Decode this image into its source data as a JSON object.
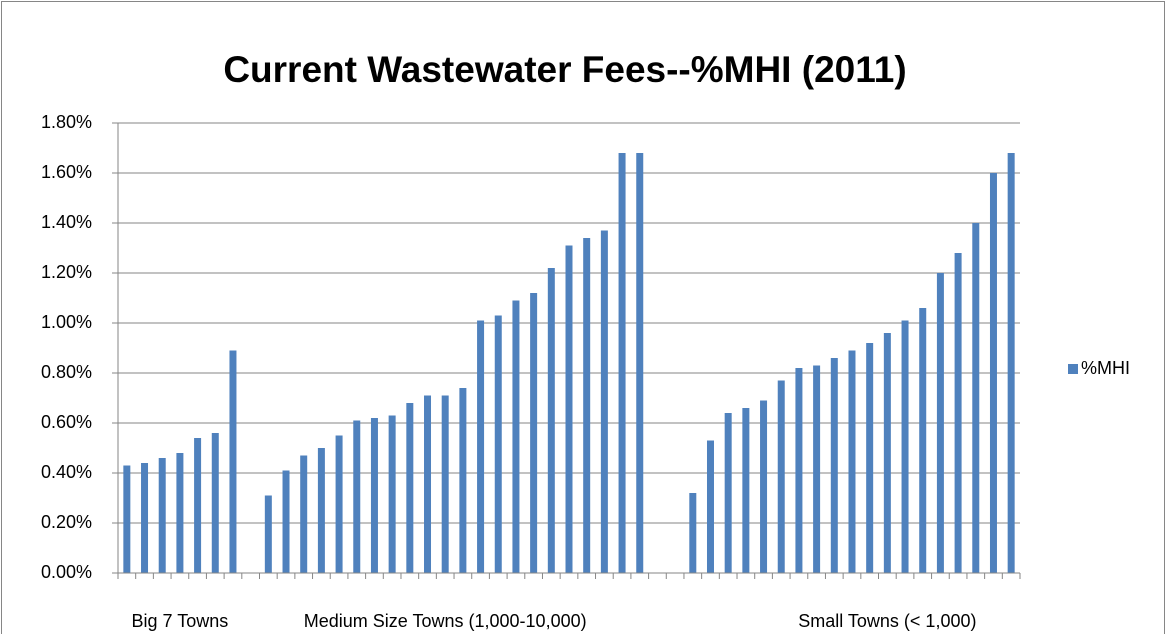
{
  "chart_data": {
    "type": "bar",
    "title": "Current Wastewater Fees--%MHI (2011)",
    "categories": [
      null,
      null,
      null,
      "Big 7 Towns",
      null,
      null,
      null,
      null,
      null,
      null,
      null,
      null,
      null,
      null,
      null,
      null,
      null,
      null,
      "Medium Size Towns (1,000-10,000)",
      null,
      null,
      null,
      null,
      null,
      null,
      null,
      null,
      null,
      null,
      null,
      null,
      null,
      null,
      null,
      null,
      null,
      null,
      null,
      null,
      null,
      null,
      null,
      null,
      "Small Towns (< 1,000)",
      null,
      null,
      null,
      null,
      null,
      null,
      null
    ],
    "series": [
      {
        "name": "%MHI",
        "color": "#4f81bd",
        "values": [
          0.43,
          0.44,
          0.46,
          0.48,
          0.54,
          0.56,
          0.89,
          null,
          0.31,
          0.41,
          0.47,
          0.5,
          0.55,
          0.61,
          0.62,
          0.63,
          0.68,
          0.71,
          0.71,
          0.74,
          1.01,
          1.03,
          1.09,
          1.12,
          1.22,
          1.31,
          1.34,
          1.37,
          1.68,
          1.68,
          null,
          null,
          0.32,
          0.53,
          0.64,
          0.66,
          0.69,
          0.77,
          0.82,
          0.83,
          0.86,
          0.89,
          0.92,
          0.96,
          1.01,
          1.06,
          1.2,
          1.28,
          1.4,
          1.6,
          1.68
        ]
      }
    ],
    "ylim": [
      0,
      1.8
    ],
    "yticks": [
      {
        "value": 0,
        "label": "0.00%"
      },
      {
        "value": 0.2,
        "label": "0.20%"
      },
      {
        "value": 0.4,
        "label": "0.40%"
      },
      {
        "value": 0.6,
        "label": "0.60%"
      },
      {
        "value": 0.8,
        "label": "0.80%"
      },
      {
        "value": 1.0,
        "label": "1.00%"
      },
      {
        "value": 1.2,
        "label": "1.20%"
      },
      {
        "value": 1.4,
        "label": "1.40%"
      },
      {
        "value": 1.6,
        "label": "1.60%"
      },
      {
        "value": 1.8,
        "label": "1.80%"
      }
    ],
    "grid": true,
    "legend": "right"
  }
}
